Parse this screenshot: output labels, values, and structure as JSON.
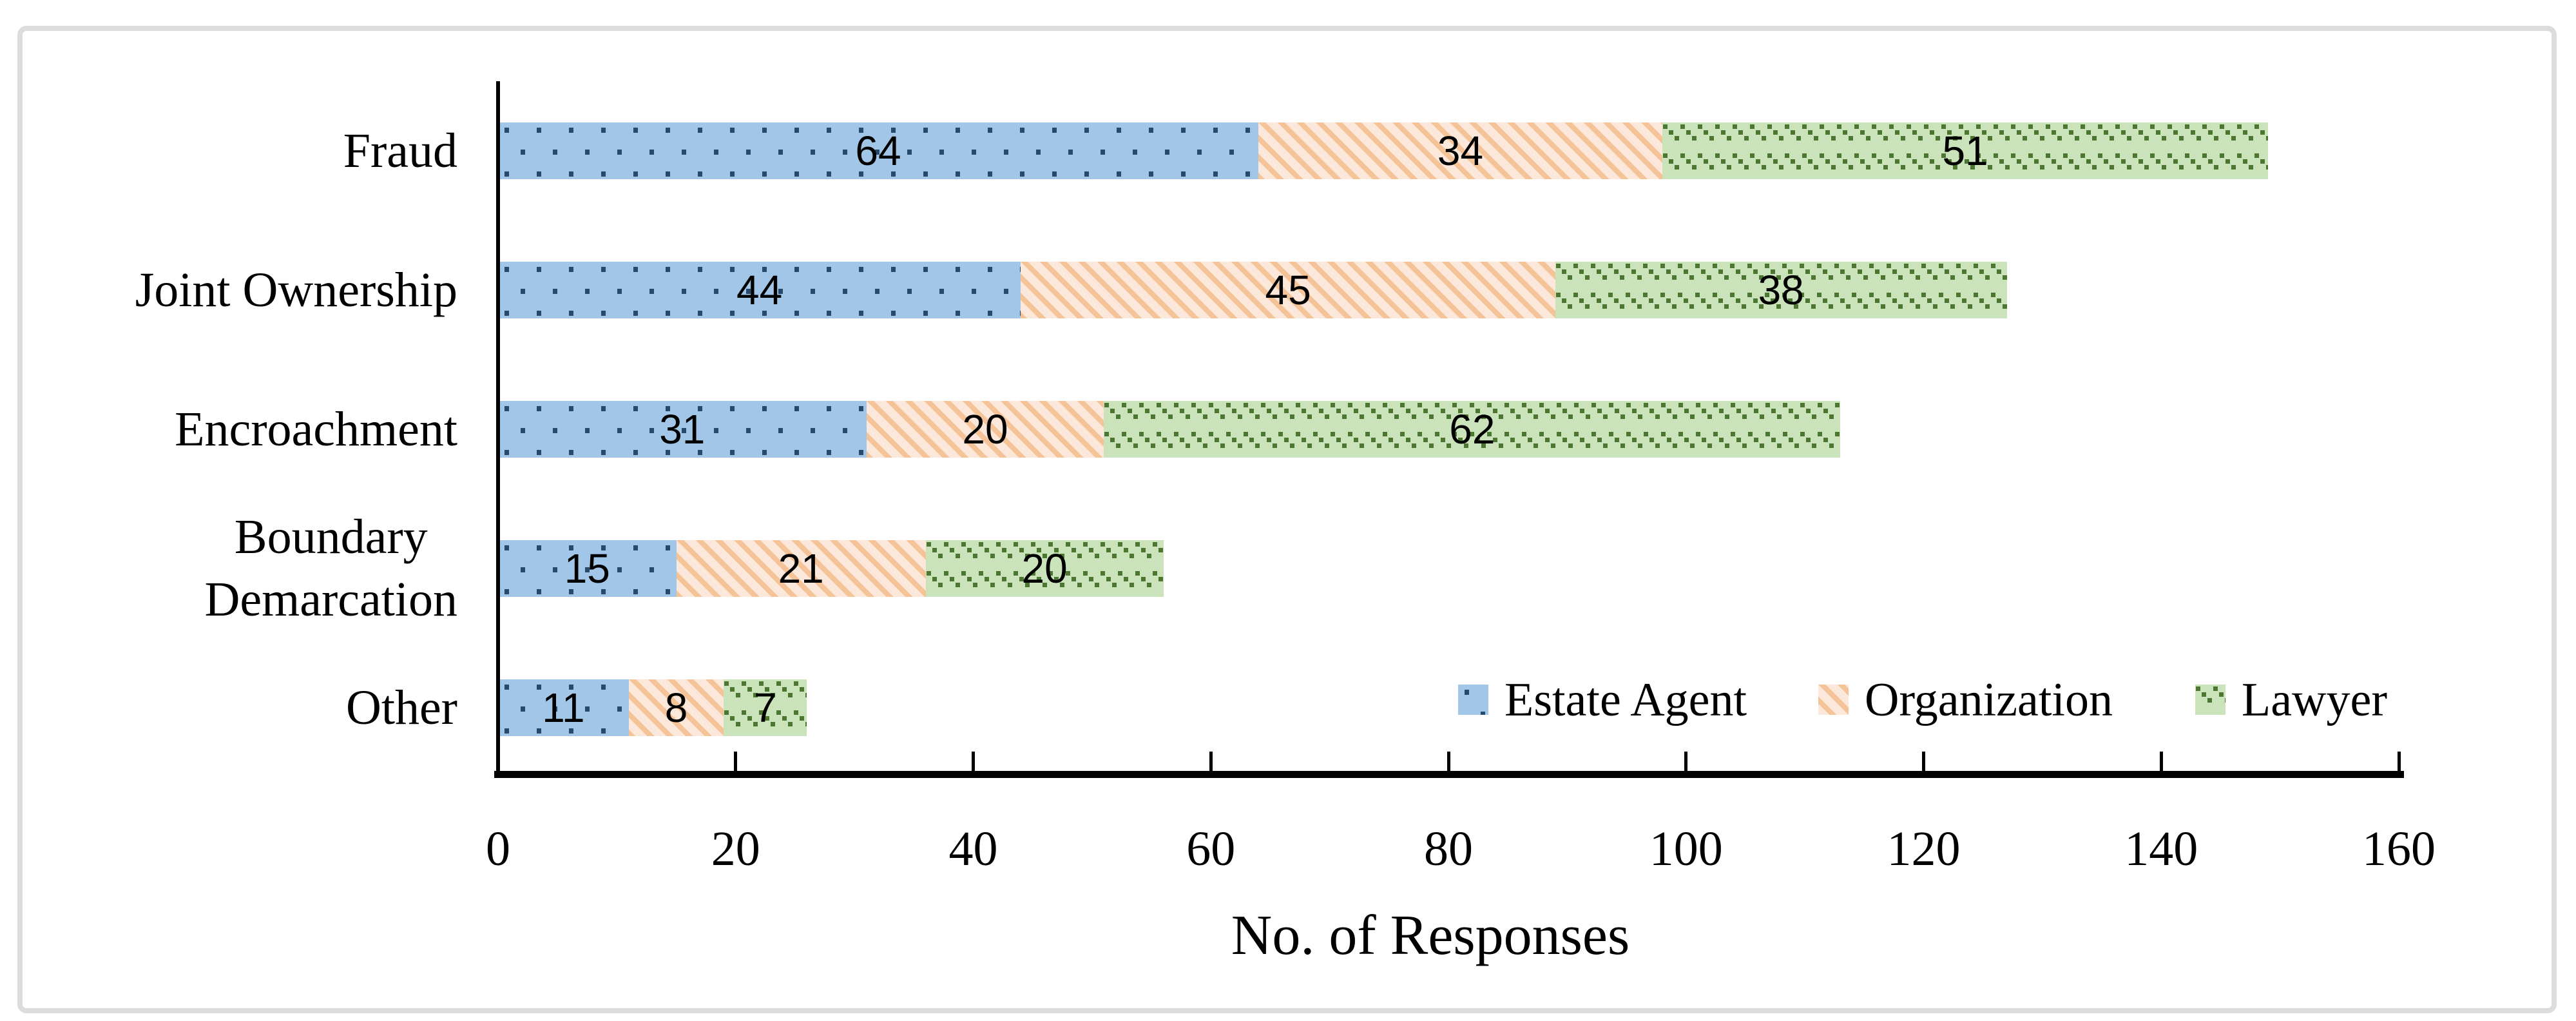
{
  "figure": {
    "background": "#FFFFFF",
    "border_color": "#DCDCDC"
  },
  "chart_data": {
    "type": "bar",
    "orientation": "horizontal",
    "stacked": true,
    "title": "",
    "xlabel": "No. of Responses",
    "ylabel": "",
    "xlim": [
      0,
      160
    ],
    "xticks": [
      "0",
      "20",
      "40",
      "60",
      "80",
      "100",
      "120",
      "140",
      "160"
    ],
    "xtick_values": [
      0,
      20,
      40,
      60,
      80,
      100,
      120,
      140,
      160
    ],
    "grid": false,
    "data_labels": true,
    "categories": [
      "Fraud",
      "Joint Ownership",
      "Encroachment",
      "Boundary Demarcation",
      "Other"
    ],
    "categories_display": [
      "Fraud",
      "Joint Ownership",
      "Encroachment",
      "Boundary\nDemarcation",
      "Other"
    ],
    "series": [
      {
        "name": "Estate Agent",
        "values": [
          64,
          44,
          31,
          15,
          11
        ],
        "pattern": "square-dots",
        "fill": "#A2C6E8",
        "pattern_color": "#29496B"
      },
      {
        "name": "Organization",
        "values": [
          34,
          45,
          20,
          21,
          8
        ],
        "pattern": "downward-diagonal-stripes",
        "fill": "#FBE8DB",
        "pattern_color": "#F5C398"
      },
      {
        "name": "Lawyer",
        "values": [
          51,
          38,
          62,
          20,
          7
        ],
        "pattern": "downward-diagonal-dashes",
        "fill": "#CBE3BA",
        "pattern_color": "#4C7731"
      }
    ],
    "legend": {
      "position": "inside-bottom-right",
      "labels": [
        "Estate Agent",
        "Organization",
        "Lawyer"
      ]
    },
    "totals": [
      149,
      127,
      113,
      56,
      26
    ]
  }
}
